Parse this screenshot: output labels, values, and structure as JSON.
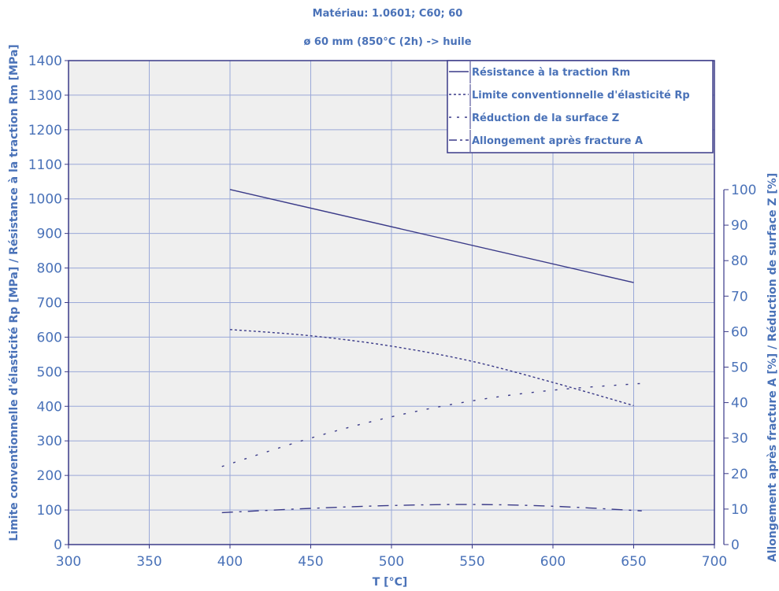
{
  "chart_data": {
    "type": "line",
    "title": "Matériau: 1.0601; C60; 60",
    "subtitle": "ø 60 mm (850°C (2h) -> huile",
    "xlabel": "T [°C]",
    "ylabel_left": "Limite conventionnelle d'élasticité Rp [MPa] / Résistance à la traction Rm [MPa]",
    "ylabel_right": "Allongement après fracture A [%] / Réduction de surface Z [%]",
    "xlim": [
      300,
      700
    ],
    "ylim_left": [
      0,
      1400
    ],
    "ylim_right": [
      0,
      100
    ],
    "x_ticks": [
      300,
      350,
      400,
      450,
      500,
      550,
      600,
      650,
      700
    ],
    "y_ticks_left": [
      0,
      100,
      200,
      300,
      400,
      500,
      600,
      700,
      800,
      900,
      1000,
      1100,
      1200,
      1300,
      1400
    ],
    "y_ticks_right": [
      0,
      10,
      20,
      30,
      40,
      50,
      60,
      70,
      80,
      90,
      100
    ],
    "grid": true,
    "legend_position": "top-right",
    "series": [
      {
        "name": "Résistance à la traction Rm",
        "axis": "left",
        "dash": "solid",
        "x": [
          400,
          650
        ],
        "y": [
          1027,
          758
        ]
      },
      {
        "name": "Limite conventionnelle d'élasticité Rp",
        "axis": "left",
        "dash": "dotted",
        "x": [
          400,
          450,
          500,
          550,
          600,
          650
        ],
        "y": [
          622,
          604,
          574,
          530,
          469,
          402
        ]
      },
      {
        "name": "Réduction de la surface Z",
        "axis": "right",
        "dash": "sparse",
        "x": [
          395,
          450,
          500,
          550,
          600,
          658
        ],
        "y": [
          22,
          30,
          36,
          40.5,
          43.5,
          45.5
        ]
      },
      {
        "name": "Allongement après fracture A",
        "axis": "right",
        "dash": "dashdot",
        "x": [
          395,
          450,
          500,
          550,
          600,
          655
        ],
        "y": [
          9,
          10.2,
          11,
          11.3,
          10.8,
          9.5
        ]
      }
    ],
    "colors": {
      "text": "#4a72b8",
      "line": "#3a3a88",
      "grid": "#9aa8d8",
      "plot_bg": "#efefef",
      "frame": "#3a3a88"
    }
  }
}
